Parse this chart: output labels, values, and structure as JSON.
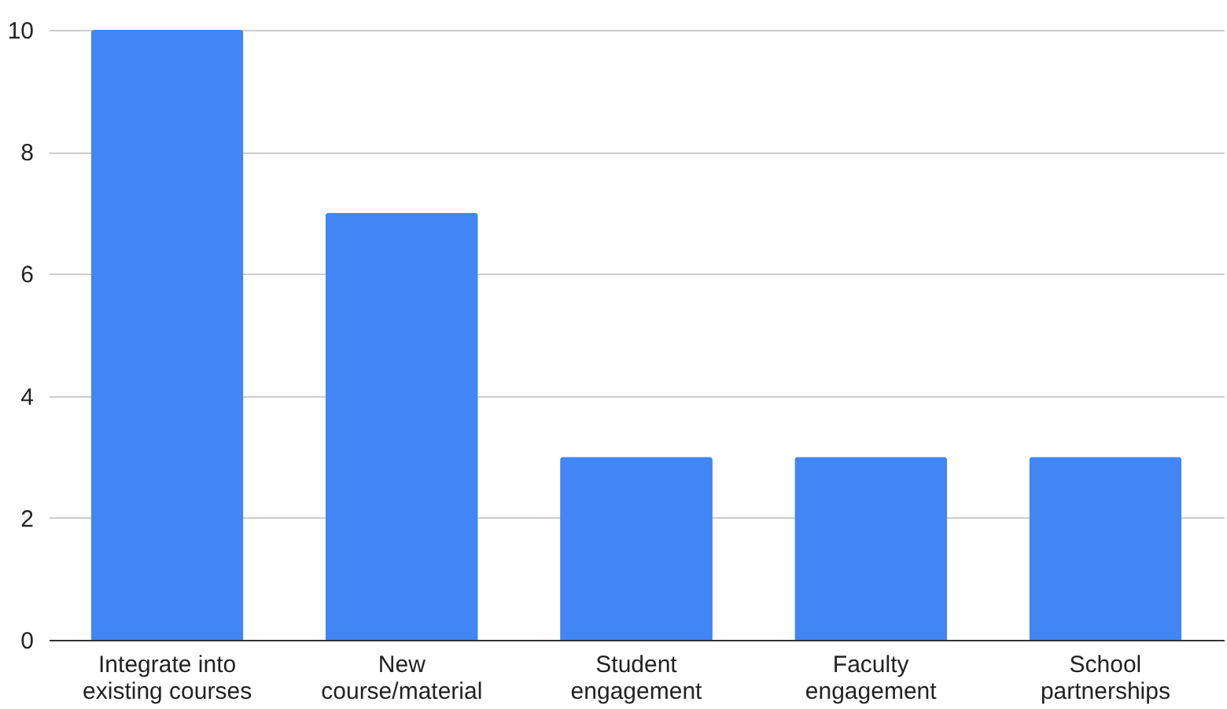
{
  "chart_data": {
    "type": "bar",
    "categories": [
      "Integrate into existing courses",
      "New course/material",
      "Student engagement",
      "Faculty engagement",
      "School partnerships"
    ],
    "values": [
      10,
      7,
      3,
      3,
      3
    ],
    "color": "#4285f4",
    "ylim": [
      0,
      10
    ],
    "yticks": [
      0,
      2,
      4,
      6,
      8,
      10
    ],
    "grid": "y"
  }
}
